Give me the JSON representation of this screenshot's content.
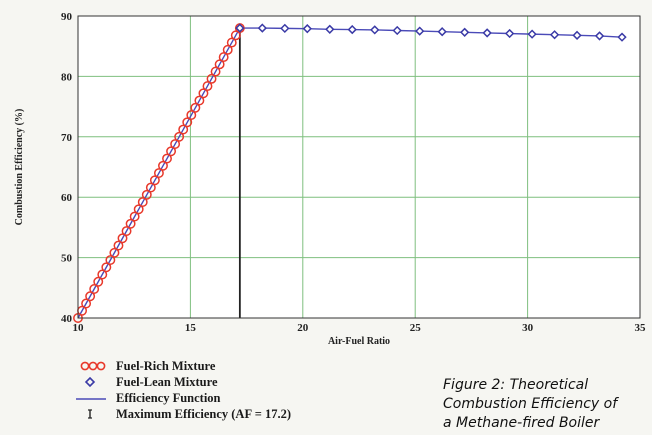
{
  "chart_data": {
    "type": "line",
    "title": "",
    "xlabel": "Air-Fuel Ratio",
    "ylabel": "Combustion Efficiency (%)",
    "xlim": [
      10,
      35
    ],
    "ylim": [
      40,
      90
    ],
    "xticks": [
      "10",
      "15",
      "20",
      "25",
      "30",
      "35"
    ],
    "yticks": [
      "40",
      "50",
      "60",
      "70",
      "80",
      "90"
    ],
    "grid": true,
    "legend_position": "bottom-left",
    "series": [
      {
        "name": "Fuel-Rich Mixture",
        "marker": "open-circle",
        "color": "#e8382a",
        "x": [
          10.0,
          10.18,
          10.36,
          10.54,
          10.72,
          10.9,
          11.08,
          11.26,
          11.44,
          11.62,
          11.8,
          11.98,
          12.16,
          12.34,
          12.52,
          12.7,
          12.88,
          13.06,
          13.24,
          13.42,
          13.6,
          13.78,
          13.96,
          14.14,
          14.32,
          14.5,
          14.68,
          14.86,
          15.04,
          15.22,
          15.4,
          15.58,
          15.76,
          15.94,
          16.12,
          16.3,
          16.48,
          16.66,
          16.84,
          17.02,
          17.2
        ],
        "y": [
          40.0,
          41.2,
          42.4,
          43.6,
          44.8,
          46.0,
          47.2,
          48.4,
          49.6,
          50.8,
          52.0,
          53.2,
          54.4,
          55.6,
          56.8,
          58.0,
          59.2,
          60.4,
          61.6,
          62.8,
          64.0,
          65.2,
          66.4,
          67.6,
          68.8,
          70.0,
          71.2,
          72.4,
          73.6,
          74.8,
          76.0,
          77.2,
          78.4,
          79.6,
          80.8,
          82.0,
          83.2,
          84.4,
          85.6,
          86.8,
          88.0
        ]
      },
      {
        "name": "Fuel-Lean Mixture",
        "marker": "open-diamond",
        "color": "#3a3aa6",
        "x": [
          17.2,
          18.2,
          19.2,
          20.2,
          21.2,
          22.2,
          23.2,
          24.2,
          25.2,
          26.2,
          27.2,
          28.2,
          29.2,
          30.2,
          31.2,
          32.2,
          33.2,
          34.2
        ],
        "y": [
          88.0,
          88.0,
          87.95,
          87.9,
          87.8,
          87.75,
          87.7,
          87.6,
          87.5,
          87.4,
          87.3,
          87.2,
          87.1,
          87.0,
          86.9,
          86.8,
          86.7,
          86.5
        ]
      },
      {
        "name": "Efficiency Function",
        "marker": "line",
        "color": "#4a4ab8"
      },
      {
        "name": "Maximum Efficiency (AF = 17.2)",
        "marker": "vertical-line",
        "color": "#222222",
        "x": [
          17.2
        ],
        "y": [
          88.0
        ]
      }
    ],
    "caption": [
      "Figure 2: Theoretical",
      "Combustion Efficiency of",
      "a Methane-fired Boiler"
    ]
  },
  "colors": {
    "plot_background": "#ffffff",
    "gridline": "#7fbf7f",
    "rich_marker": "#e8382a",
    "lean_marker": "#3a3aa6",
    "efficiency_line": "#4a4ab8",
    "max_line": "#222222"
  }
}
